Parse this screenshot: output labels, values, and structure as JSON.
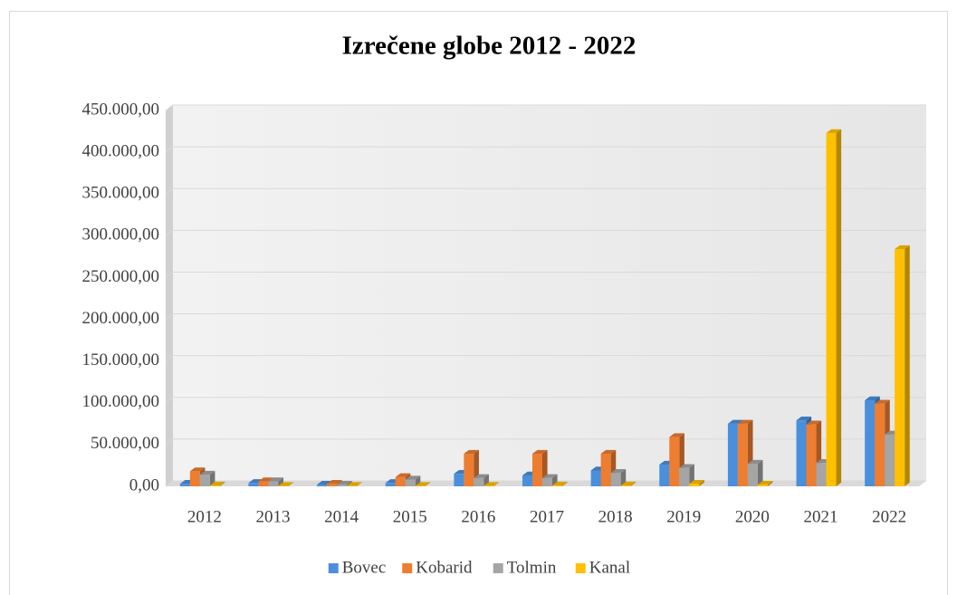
{
  "chart_data": {
    "type": "bar",
    "title": "Izrečene globe 2012 - 2022",
    "categories": [
      "2012",
      "2013",
      "2014",
      "2015",
      "2016",
      "2017",
      "2018",
      "2019",
      "2020",
      "2021",
      "2022"
    ],
    "series": [
      {
        "name": "Bovec",
        "color": "#4a8fdc",
        "values": [
          3000,
          4000,
          2000,
          4000,
          15000,
          13000,
          19000,
          26000,
          75000,
          79000,
          103000
        ]
      },
      {
        "name": "Kobarid",
        "color": "#ed7d31",
        "values": [
          18000,
          6000,
          3000,
          11000,
          39000,
          39000,
          39000,
          59000,
          75000,
          74000,
          99000
        ]
      },
      {
        "name": "Tolmin",
        "color": "#a5a5a5",
        "values": [
          14000,
          6000,
          2000,
          8000,
          10000,
          10000,
          16000,
          22000,
          27000,
          28000,
          62000
        ]
      },
      {
        "name": "Kanal",
        "color": "#ffc000",
        "values": [
          1000,
          500,
          500,
          500,
          500,
          1000,
          1000,
          3000,
          2000,
          423000,
          284000
        ]
      }
    ],
    "ylim": [
      0,
      450000
    ],
    "yticks": [
      {
        "value": 0,
        "label": "0,00"
      },
      {
        "value": 50000,
        "label": "50.000,00"
      },
      {
        "value": 100000,
        "label": "100.000,00"
      },
      {
        "value": 150000,
        "label": "150.000,00"
      },
      {
        "value": 200000,
        "label": "200.000,00"
      },
      {
        "value": 250000,
        "label": "250.000,00"
      },
      {
        "value": 300000,
        "label": "300.000,00"
      },
      {
        "value": 350000,
        "label": "350.000,00"
      },
      {
        "value": 400000,
        "label": "400.000,00"
      },
      {
        "value": 450000,
        "label": "450.000,00"
      }
    ],
    "grid": true,
    "legend": "bottom"
  }
}
